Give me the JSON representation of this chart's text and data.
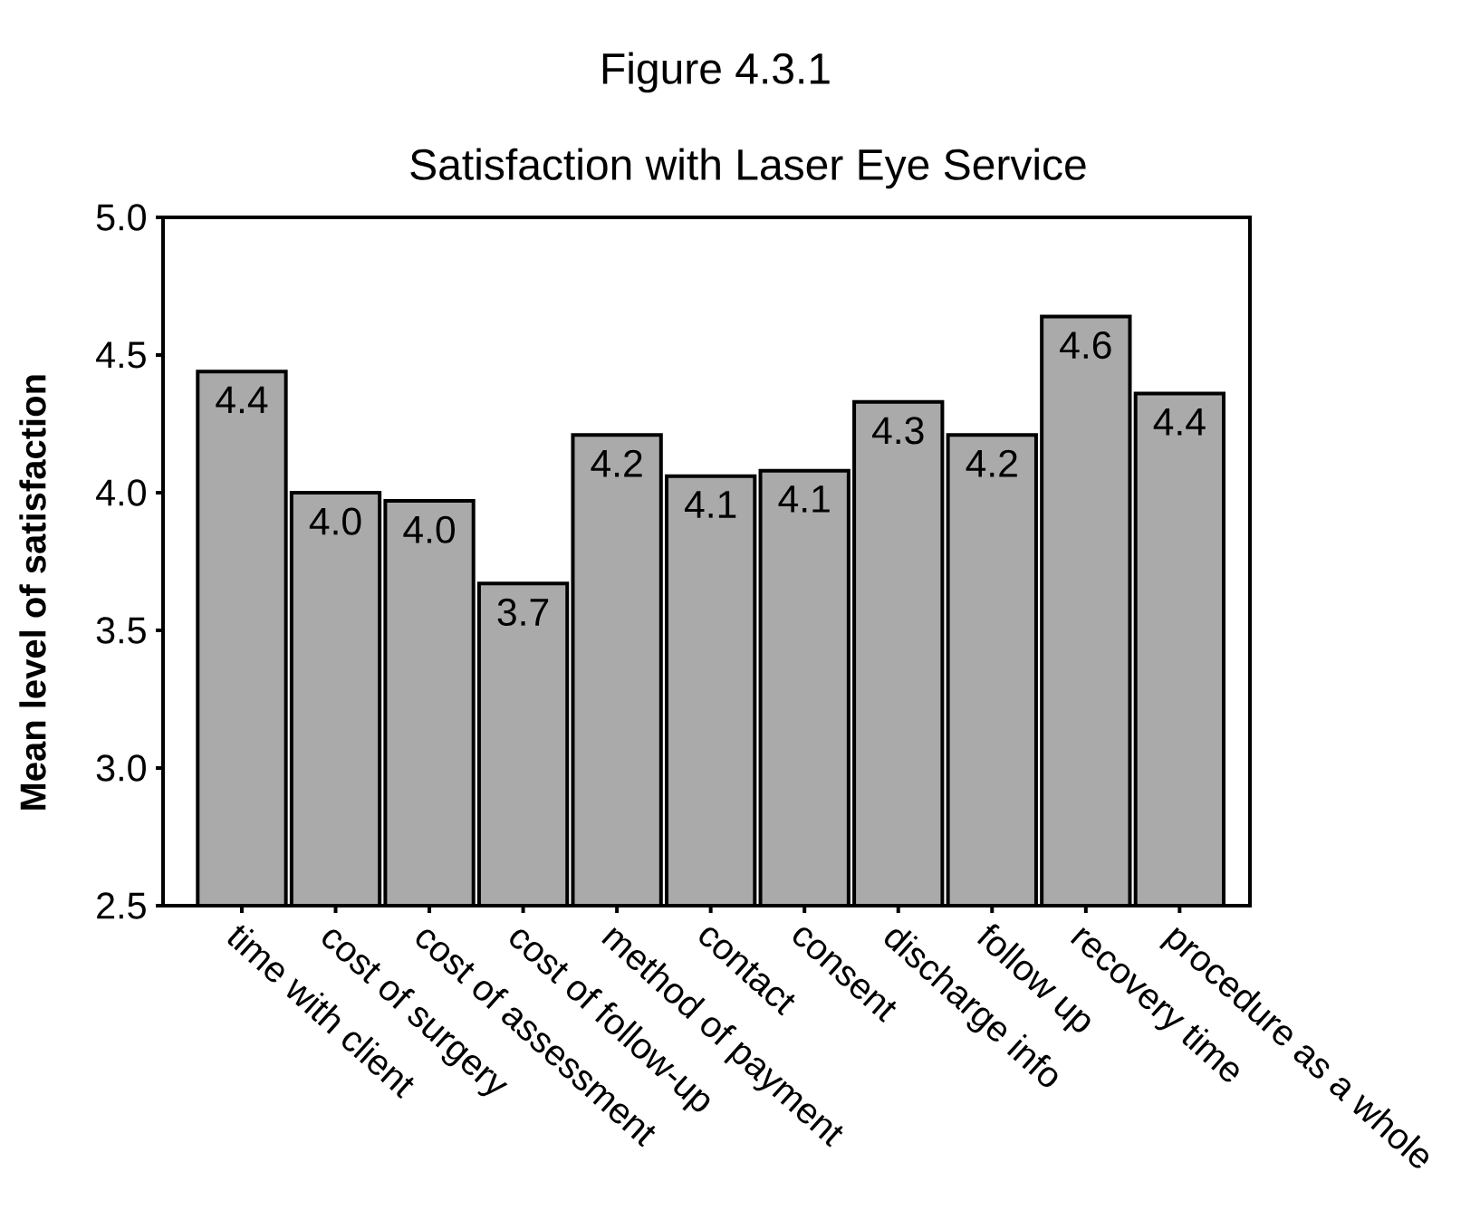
{
  "chart_data": {
    "type": "bar",
    "title": "Figure 4.3.1",
    "subtitle": "Satisfaction with Laser Eye Service",
    "ylabel": "Mean level of satisfaction",
    "categories": [
      "time with client",
      "cost of surgery",
      "cost of assessment",
      "cost of follow-up",
      "method of payment",
      "contact",
      "consent",
      "discharge info",
      "follow up",
      "recovery time",
      "procedure as a whole"
    ],
    "values": [
      4.44,
      4.0,
      3.97,
      3.67,
      4.21,
      4.06,
      4.08,
      4.33,
      4.21,
      4.64,
      4.36
    ],
    "value_labels": [
      "4.4",
      "4.0",
      "4.0",
      "3.7",
      "4.2",
      "4.1",
      "4.1",
      "4.3",
      "4.2",
      "4.6",
      "4.4"
    ],
    "color": "#aaaaaa",
    "ylim": [
      2.5,
      5.0
    ],
    "yticks": [
      2.5,
      {
        "value": 3,
        "label": "3.0"
      },
      3.5,
      {
        "value": 4,
        "label": "4.0"
      },
      4.5,
      {
        "value": 5,
        "label": "5.0"
      }
    ]
  }
}
